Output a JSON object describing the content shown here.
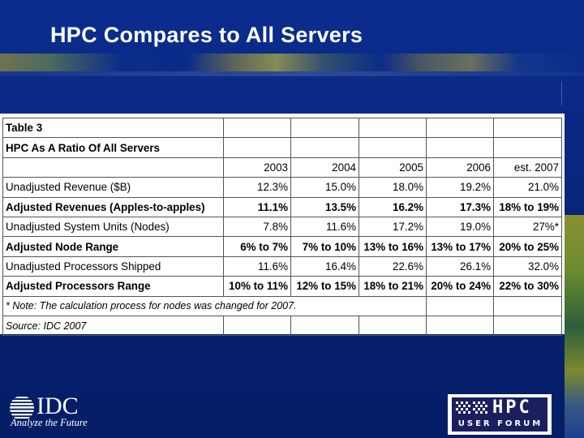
{
  "slide": {
    "title": "HPC Compares to All Servers"
  },
  "table": {
    "caption_line1": "Table 3",
    "caption_line2": "HPC As A Ratio Of All Servers",
    "columns": [
      "2003",
      "2004",
      "2005",
      "2006",
      "est. 2007"
    ],
    "rows": [
      {
        "label": "Unadjusted Revenue ($B)",
        "bold": false,
        "values": [
          "12.3%",
          "15.0%",
          "18.0%",
          "19.2%",
          "21.0%"
        ]
      },
      {
        "label": "Adjusted Revenues (Apples-to-apples)",
        "bold": true,
        "values": [
          "11.1%",
          "13.5%",
          "16.2%",
          "17.3%",
          "18% to 19%"
        ]
      },
      {
        "label": "Unadjusted System Units (Nodes)",
        "bold": false,
        "values": [
          "7.8%",
          "11.6%",
          "17.2%",
          "19.0%",
          "27%*"
        ]
      },
      {
        "label": "Adjusted Node Range",
        "bold": true,
        "values": [
          "6% to 7%",
          "7% to 10%",
          "13% to 16%",
          "13% to 17%",
          "20% to 25%"
        ]
      },
      {
        "label": "Unadjusted Processors Shipped",
        "bold": false,
        "values": [
          "11.6%",
          "16.4%",
          "22.6%",
          "26.1%",
          "32.0%"
        ]
      },
      {
        "label": "Adjusted Processors Range",
        "bold": true,
        "values": [
          "10% to 11%",
          "12% to 15%",
          "18% to 21%",
          "20% to 24%",
          "22% to 30%"
        ]
      }
    ],
    "note": "* Note: The calculation process for nodes was changed for 2007.",
    "source": "Source: IDC 2007"
  },
  "logos": {
    "idc_name": "IDC",
    "idc_tagline": "Analyze the Future",
    "hpc_name": "HPC",
    "hpc_sub": "USER FORUM"
  },
  "colors": {
    "background": "#082477",
    "title": "#ffffff",
    "table_bg": "#ffffff"
  }
}
